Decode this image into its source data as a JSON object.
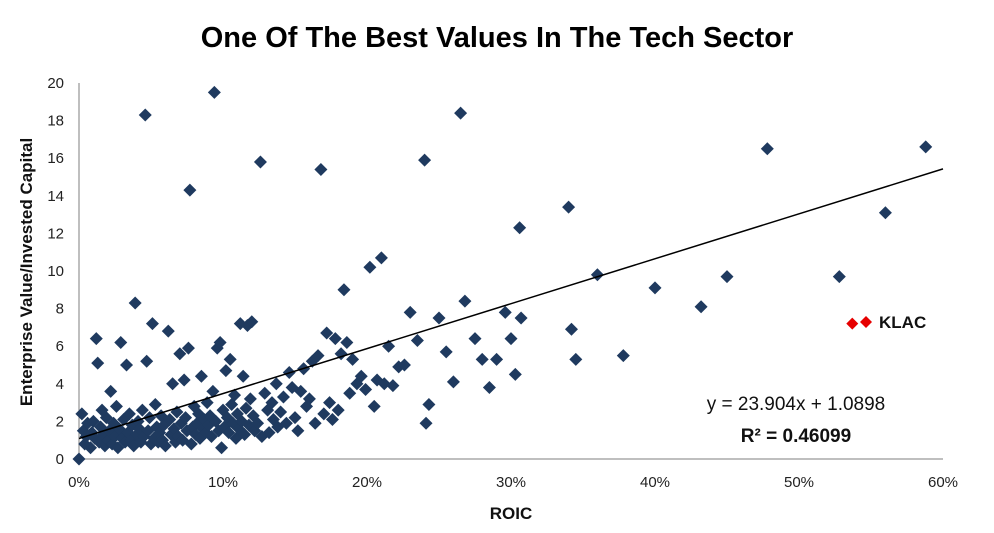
{
  "chart_data": {
    "type": "scatter",
    "title": "One Of The Best Values In The Tech Sector",
    "xlabel": "ROIC",
    "ylabel": "Enterprise Value/Invested Capital",
    "xlim": [
      0,
      0.6
    ],
    "ylim": [
      0,
      20
    ],
    "x_ticks": [
      "0%",
      "10%",
      "20%",
      "30%",
      "40%",
      "50%",
      "60%"
    ],
    "y_ticks": [
      "0",
      "2",
      "4",
      "6",
      "8",
      "10",
      "12",
      "14",
      "16",
      "18",
      "20"
    ],
    "grid": false,
    "series": [
      {
        "color": "#1F3A5F",
        "marker": "diamond",
        "points": [
          [
            0.0,
            0.0
          ],
          [
            0.002,
            2.4
          ],
          [
            0.003,
            1.5
          ],
          [
            0.004,
            0.8
          ],
          [
            0.005,
            1.2
          ],
          [
            0.006,
            1.9
          ],
          [
            0.008,
            0.6
          ],
          [
            0.009,
            1.4
          ],
          [
            0.01,
            2.0
          ],
          [
            0.011,
            1.1
          ],
          [
            0.012,
            6.4
          ],
          [
            0.013,
            5.1
          ],
          [
            0.014,
            0.9
          ],
          [
            0.015,
            1.7
          ],
          [
            0.016,
            2.6
          ],
          [
            0.017,
            1.3
          ],
          [
            0.018,
            0.7
          ],
          [
            0.019,
            2.2
          ],
          [
            0.02,
            1.0
          ],
          [
            0.021,
            1.5
          ],
          [
            0.022,
            3.6
          ],
          [
            0.023,
            0.8
          ],
          [
            0.024,
            1.9
          ],
          [
            0.025,
            1.2
          ],
          [
            0.026,
            2.8
          ],
          [
            0.027,
            0.6
          ],
          [
            0.028,
            1.6
          ],
          [
            0.029,
            6.2
          ],
          [
            0.03,
            1.1
          ],
          [
            0.031,
            2.1
          ],
          [
            0.032,
            0.9
          ],
          [
            0.033,
            5.0
          ],
          [
            0.034,
            1.4
          ],
          [
            0.035,
            2.4
          ],
          [
            0.036,
            1.0
          ],
          [
            0.037,
            1.8
          ],
          [
            0.038,
            0.7
          ],
          [
            0.039,
            8.3
          ],
          [
            0.04,
            1.3
          ],
          [
            0.041,
            2.0
          ],
          [
            0.042,
            1.6
          ],
          [
            0.043,
            0.9
          ],
          [
            0.044,
            2.6
          ],
          [
            0.045,
            1.2
          ],
          [
            0.046,
            18.3
          ],
          [
            0.047,
            5.2
          ],
          [
            0.048,
            1.5
          ],
          [
            0.049,
            2.2
          ],
          [
            0.05,
            0.8
          ],
          [
            0.051,
            7.2
          ],
          [
            0.052,
            1.1
          ],
          [
            0.053,
            2.9
          ],
          [
            0.054,
            1.7
          ],
          [
            0.055,
            0.9
          ],
          [
            0.056,
            1.4
          ],
          [
            0.057,
            2.3
          ],
          [
            0.058,
            1.0
          ],
          [
            0.059,
            1.8
          ],
          [
            0.06,
            0.7
          ],
          [
            0.062,
            6.8
          ],
          [
            0.063,
            2.1
          ],
          [
            0.064,
            1.3
          ],
          [
            0.065,
            4.0
          ],
          [
            0.066,
            1.6
          ],
          [
            0.067,
            0.9
          ],
          [
            0.068,
            2.5
          ],
          [
            0.069,
            1.2
          ],
          [
            0.07,
            5.6
          ],
          [
            0.071,
            1.9
          ],
          [
            0.072,
            1.0
          ],
          [
            0.073,
            4.2
          ],
          [
            0.074,
            2.2
          ],
          [
            0.075,
            1.5
          ],
          [
            0.076,
            5.9
          ],
          [
            0.077,
            14.3
          ],
          [
            0.078,
            0.8
          ],
          [
            0.079,
            1.7
          ],
          [
            0.08,
            2.8
          ],
          [
            0.081,
            1.3
          ],
          [
            0.082,
            1.9
          ],
          [
            0.083,
            2.4
          ],
          [
            0.084,
            1.1
          ],
          [
            0.085,
            4.4
          ],
          [
            0.086,
            1.6
          ],
          [
            0.087,
            2.1
          ],
          [
            0.088,
            1.4
          ],
          [
            0.089,
            3.0
          ],
          [
            0.09,
            1.8
          ],
          [
            0.091,
            2.3
          ],
          [
            0.092,
            1.2
          ],
          [
            0.093,
            3.6
          ],
          [
            0.094,
            19.5
          ],
          [
            0.095,
            2.0
          ],
          [
            0.096,
            5.9
          ],
          [
            0.097,
            1.5
          ],
          [
            0.098,
            6.2
          ],
          [
            0.099,
            0.6
          ],
          [
            0.1,
            2.6
          ],
          [
            0.101,
            1.7
          ],
          [
            0.102,
            4.7
          ],
          [
            0.103,
            2.2
          ],
          [
            0.104,
            1.4
          ],
          [
            0.105,
            5.3
          ],
          [
            0.106,
            2.9
          ],
          [
            0.107,
            1.9
          ],
          [
            0.108,
            3.4
          ],
          [
            0.109,
            1.1
          ],
          [
            0.11,
            2.4
          ],
          [
            0.111,
            1.6
          ],
          [
            0.112,
            7.2
          ],
          [
            0.113,
            2.0
          ],
          [
            0.114,
            4.4
          ],
          [
            0.115,
            1.3
          ],
          [
            0.116,
            2.7
          ],
          [
            0.117,
            7.1
          ],
          [
            0.118,
            1.8
          ],
          [
            0.119,
            3.2
          ],
          [
            0.12,
            7.3
          ],
          [
            0.121,
            2.3
          ],
          [
            0.122,
            1.5
          ],
          [
            0.124,
            1.9
          ],
          [
            0.126,
            15.8
          ],
          [
            0.127,
            1.2
          ],
          [
            0.129,
            3.5
          ],
          [
            0.131,
            2.6
          ],
          [
            0.132,
            1.4
          ],
          [
            0.134,
            3.0
          ],
          [
            0.135,
            2.1
          ],
          [
            0.137,
            4.0
          ],
          [
            0.138,
            1.7
          ],
          [
            0.14,
            2.5
          ],
          [
            0.142,
            3.3
          ],
          [
            0.144,
            1.9
          ],
          [
            0.146,
            4.6
          ],
          [
            0.148,
            3.8
          ],
          [
            0.15,
            2.2
          ],
          [
            0.152,
            1.5
          ],
          [
            0.154,
            3.6
          ],
          [
            0.156,
            4.8
          ],
          [
            0.158,
            2.8
          ],
          [
            0.16,
            3.2
          ],
          [
            0.162,
            5.2
          ],
          [
            0.164,
            1.9
          ],
          [
            0.166,
            5.5
          ],
          [
            0.168,
            15.4
          ],
          [
            0.17,
            2.4
          ],
          [
            0.172,
            6.7
          ],
          [
            0.174,
            3.0
          ],
          [
            0.176,
            2.1
          ],
          [
            0.178,
            6.4
          ],
          [
            0.18,
            2.6
          ],
          [
            0.182,
            5.6
          ],
          [
            0.184,
            9.0
          ],
          [
            0.186,
            6.2
          ],
          [
            0.188,
            3.5
          ],
          [
            0.19,
            5.3
          ],
          [
            0.193,
            4.0
          ],
          [
            0.196,
            4.4
          ],
          [
            0.199,
            3.7
          ],
          [
            0.202,
            10.2
          ],
          [
            0.205,
            2.8
          ],
          [
            0.207,
            4.2
          ],
          [
            0.21,
            10.7
          ],
          [
            0.212,
            4.0
          ],
          [
            0.215,
            6.0
          ],
          [
            0.218,
            3.9
          ],
          [
            0.222,
            4.9
          ],
          [
            0.226,
            5.0
          ],
          [
            0.23,
            7.8
          ],
          [
            0.235,
            6.3
          ],
          [
            0.24,
            15.9
          ],
          [
            0.241,
            1.9
          ],
          [
            0.243,
            2.9
          ],
          [
            0.25,
            7.5
          ],
          [
            0.255,
            5.7
          ],
          [
            0.26,
            4.1
          ],
          [
            0.265,
            18.4
          ],
          [
            0.268,
            8.4
          ],
          [
            0.275,
            6.4
          ],
          [
            0.28,
            5.3
          ],
          [
            0.285,
            3.8
          ],
          [
            0.29,
            5.3
          ],
          [
            0.296,
            7.8
          ],
          [
            0.3,
            6.4
          ],
          [
            0.303,
            4.5
          ],
          [
            0.306,
            12.3
          ],
          [
            0.307,
            7.5
          ],
          [
            0.34,
            13.4
          ],
          [
            0.342,
            6.9
          ],
          [
            0.345,
            5.3
          ],
          [
            0.36,
            9.8
          ],
          [
            0.378,
            5.5
          ],
          [
            0.4,
            9.1
          ],
          [
            0.432,
            8.1
          ],
          [
            0.45,
            9.7
          ],
          [
            0.478,
            16.5
          ],
          [
            0.528,
            9.7
          ],
          [
            0.56,
            13.1
          ],
          [
            0.588,
            16.6
          ]
        ]
      },
      {
        "name": "KLAC",
        "color": "#E60000",
        "marker": "diamond",
        "points": [
          [
            0.537,
            7.2
          ]
        ]
      }
    ],
    "trendline": {
      "slope": 23.904,
      "intercept": 1.0898,
      "x_range": [
        0,
        0.6
      ],
      "equation": "y = 23.904x + 1.0898",
      "r_squared": "R² = 0.46099"
    },
    "legend": {
      "label": "KLAC",
      "placement": "right"
    }
  }
}
